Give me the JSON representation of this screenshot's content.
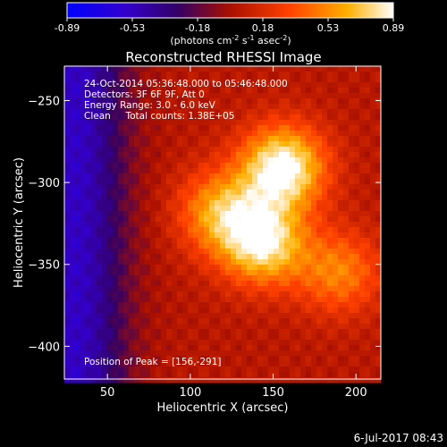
{
  "chart_data": {
    "type": "heatmap",
    "title": "Reconstructed RHESSI Image",
    "xlabel": "Heliocentric X (arcsec)",
    "ylabel": "Heliocentric Y (arcsec)",
    "xlim": [
      24,
      215
    ],
    "ylim": [
      -420,
      -229
    ],
    "x_ticks": [
      50,
      100,
      150,
      200
    ],
    "y_ticks": [
      -250,
      -300,
      -350,
      -400
    ],
    "colorbar": {
      "ticks": [
        "-0.89",
        "-0.53",
        "-0.18",
        "0.18",
        "0.53",
        "0.89"
      ],
      "range": [
        -0.89,
        0.89
      ],
      "unit_label_parts": [
        "(photons cm",
        "-2",
        " s",
        "-1",
        " asec",
        "-2",
        ")"
      ]
    },
    "annotations": [
      "24-Oct-2014 05:36:48.000 to 05:46:48.000",
      "Detectors: 3F 6F 9F, Att 0",
      "Energy Range: 3.0 - 6.0 keV",
      "Clean     Total counts: 1.38E+05"
    ],
    "peak_label": "Position of Peak = [156,-291]",
    "peak": {
      "x": 156,
      "y": -291,
      "value": 0.89
    },
    "sources": [
      {
        "x": 156,
        "y": -291,
        "amplitude": 0.89
      },
      {
        "x": 144,
        "y": -337,
        "amplitude": 0.78
      },
      {
        "x": 118,
        "y": -318,
        "amplitude": 0.55
      },
      {
        "x": 190,
        "y": -355,
        "amplitude": 0.45
      }
    ],
    "background_level": 0.05
  },
  "footer": {
    "timestamp": "6-Jul-2017 08:43"
  }
}
